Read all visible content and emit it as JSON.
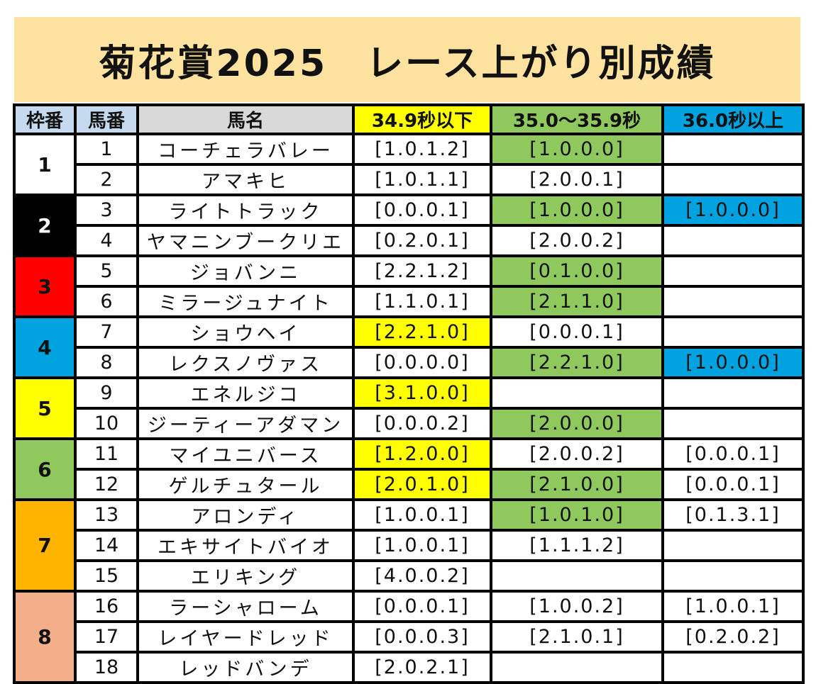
{
  "title": "菊花賞2025　レース上がり別成績",
  "headers": {
    "gate": "枠番",
    "number": "馬番",
    "name": "馬名",
    "fast": "34.9秒以下",
    "mid": "35.0〜35.9秒",
    "slow": "36.0秒以上"
  },
  "colors": {
    "title_bg": "#fde39f",
    "highlight_fast": "#ffff00",
    "highlight_mid": "#8fc85c",
    "highlight_slow": "#00a3e0",
    "gate_1": "#ffffff",
    "gate_2": "#000000",
    "gate_3": "#ff0000",
    "gate_4": "#00a3e0",
    "gate_5": "#ffff00",
    "gate_6": "#8fc85c",
    "gate_7": "#ffb400",
    "gate_8": "#f3ae8a"
  },
  "gates": [
    {
      "label": "1",
      "bg": "#ffffff",
      "fg": "#111111",
      "rows": 2
    },
    {
      "label": "2",
      "bg": "#000000",
      "fg": "#ffffff",
      "rows": 2
    },
    {
      "label": "3",
      "bg": "#ff0000",
      "fg": "#111111",
      "rows": 2
    },
    {
      "label": "4",
      "bg": "#00a3e0",
      "fg": "#111111",
      "rows": 2
    },
    {
      "label": "5",
      "bg": "#ffff00",
      "fg": "#111111",
      "rows": 2
    },
    {
      "label": "6",
      "bg": "#8fc85c",
      "fg": "#111111",
      "rows": 2
    },
    {
      "label": "7",
      "bg": "#ffb400",
      "fg": "#111111",
      "rows": 3
    },
    {
      "label": "8",
      "bg": "#f3ae8a",
      "fg": "#111111",
      "rows": 3
    }
  ],
  "rows": [
    {
      "number": "1",
      "name": "コーチェラバレー",
      "fast": "[1.0.1.2]",
      "mid": "[1.0.0.0]",
      "slow": "",
      "hl": [
        "",
        "green",
        ""
      ]
    },
    {
      "number": "2",
      "name": "アマキヒ",
      "fast": "[1.0.1.1]",
      "mid": "[2.0.0.1]",
      "slow": "",
      "hl": [
        "",
        "",
        ""
      ]
    },
    {
      "number": "3",
      "name": "ライトトラック",
      "fast": "[0.0.0.1]",
      "mid": "[1.0.0.0]",
      "slow": "[1.0.0.0]",
      "hl": [
        "",
        "green",
        "blue"
      ]
    },
    {
      "number": "4",
      "name": "ヤマニンブークリエ",
      "fast": "[0.2.0.1]",
      "mid": "[2.0.0.2]",
      "slow": "",
      "hl": [
        "",
        "",
        ""
      ]
    },
    {
      "number": "5",
      "name": "ジョバンニ",
      "fast": "[2.2.1.2]",
      "mid": "[0.1.0.0]",
      "slow": "",
      "hl": [
        "",
        "green",
        ""
      ]
    },
    {
      "number": "6",
      "name": "ミラージュナイト",
      "fast": "[1.1.0.1]",
      "mid": "[2.1.1.0]",
      "slow": "",
      "hl": [
        "",
        "green",
        ""
      ]
    },
    {
      "number": "7",
      "name": "ショウヘイ",
      "fast": "[2.2.1.0]",
      "mid": "[0.0.0.1]",
      "slow": "",
      "hl": [
        "yellow",
        "",
        ""
      ]
    },
    {
      "number": "8",
      "name": "レクスノヴァス",
      "fast": "[0.0.0.0]",
      "mid": "[2.2.1.0]",
      "slow": "[1.0.0.0]",
      "hl": [
        "",
        "green",
        "blue"
      ]
    },
    {
      "number": "9",
      "name": "エネルジコ",
      "fast": "[3.1.0.0]",
      "mid": "",
      "slow": "",
      "hl": [
        "yellow",
        "",
        ""
      ]
    },
    {
      "number": "10",
      "name": "ジーティーアダマン",
      "fast": "[0.0.0.2]",
      "mid": "[2.0.0.0]",
      "slow": "",
      "hl": [
        "",
        "green",
        ""
      ]
    },
    {
      "number": "11",
      "name": "マイユニバース",
      "fast": "[1.2.0.0]",
      "mid": "[2.0.0.2]",
      "slow": "[0.0.0.1]",
      "hl": [
        "yellow",
        "",
        ""
      ]
    },
    {
      "number": "12",
      "name": "ゲルチュタール",
      "fast": "[2.0.1.0]",
      "mid": "[2.1.0.0]",
      "slow": "[0.0.0.1]",
      "hl": [
        "yellow",
        "green",
        ""
      ]
    },
    {
      "number": "13",
      "name": "アロンディ",
      "fast": "[1.0.0.1]",
      "mid": "[1.0.1.0]",
      "slow": "[0.1.3.1]",
      "hl": [
        "",
        "green",
        ""
      ]
    },
    {
      "number": "14",
      "name": "エキサイトバイオ",
      "fast": "[1.0.0.1]",
      "mid": "[1.1.1.2]",
      "slow": "",
      "hl": [
        "",
        "",
        ""
      ]
    },
    {
      "number": "15",
      "name": "エリキング",
      "fast": "[4.0.0.2]",
      "mid": "",
      "slow": "",
      "hl": [
        "",
        "",
        ""
      ]
    },
    {
      "number": "16",
      "name": "ラーシャローム",
      "fast": "[0.0.0.1]",
      "mid": "[1.0.0.2]",
      "slow": "[1.0.0.1]",
      "hl": [
        "",
        "",
        ""
      ]
    },
    {
      "number": "17",
      "name": "レイヤードレッド",
      "fast": "[0.0.0.3]",
      "mid": "[2.1.0.1]",
      "slow": "[0.2.0.2]",
      "hl": [
        "",
        "",
        ""
      ]
    },
    {
      "number": "18",
      "name": "レッドバンデ",
      "fast": "[2.0.2.1]",
      "mid": "",
      "slow": "",
      "hl": [
        "",
        "",
        ""
      ]
    }
  ]
}
